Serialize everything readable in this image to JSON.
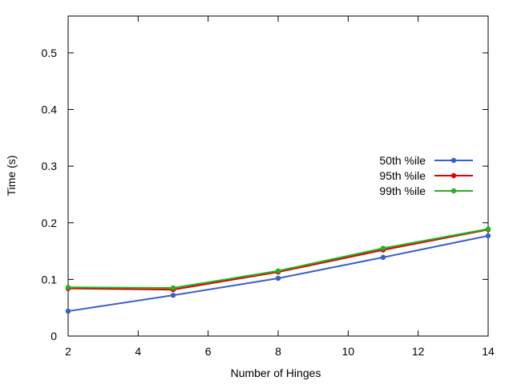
{
  "chart_data": {
    "type": "line",
    "title": "",
    "xlabel": "Number of Hinges",
    "ylabel": "Time (s)",
    "xlim": [
      2,
      14
    ],
    "ylim": [
      0,
      0.565
    ],
    "xticks": [
      "2",
      "4",
      "6",
      "8",
      "10",
      "12",
      "14"
    ],
    "yticks": [
      "0",
      "0.1",
      "0.2",
      "0.3",
      "0.4",
      "0.5"
    ],
    "grid": false,
    "legend_position": "right",
    "x": [
      2,
      5,
      8,
      11,
      14
    ],
    "series": [
      {
        "name": "50th %ile",
        "color": "#3a5fcd",
        "values": [
          0.044,
          0.072,
          0.102,
          0.139,
          0.177
        ]
      },
      {
        "name": "95th %ile",
        "color": "#e00000",
        "values": [
          0.084,
          0.082,
          0.113,
          0.152,
          0.188
        ]
      },
      {
        "name": "99th %ile",
        "color": "#1eb41e",
        "values": [
          0.086,
          0.085,
          0.115,
          0.155,
          0.189
        ]
      }
    ]
  }
}
